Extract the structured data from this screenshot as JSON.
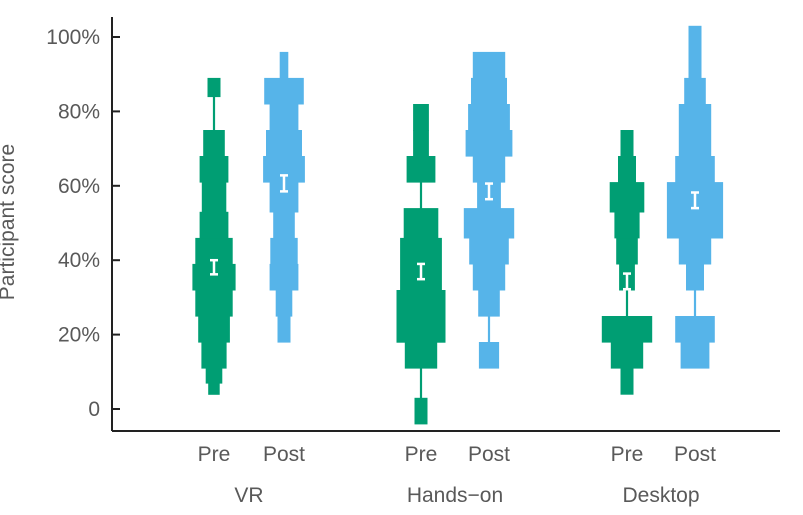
{
  "chart_data": {
    "type": "violin",
    "ylabel": "Participant score",
    "ylim": [
      -0.06,
      1.07
    ],
    "yticks": [
      {
        "value": 0.0,
        "label": "0"
      },
      {
        "value": 0.2,
        "label": "20%"
      },
      {
        "value": 0.4,
        "label": "40%"
      },
      {
        "value": 0.6,
        "label": "60%"
      },
      {
        "value": 0.8,
        "label": "80%"
      },
      {
        "value": 1.0,
        "label": "100%"
      }
    ],
    "groups": [
      {
        "name": "VR",
        "series": [
          {
            "name": "Pre",
            "color": "#009E73",
            "mean": 0.381,
            "ci": [
              0.362,
              0.4
            ],
            "steps": [
              [
                0.04,
                0.07,
                0.16
              ],
              [
                0.07,
                0.11,
                0.23
              ],
              [
                0.11,
                0.18,
                0.35
              ],
              [
                0.18,
                0.25,
                0.44
              ],
              [
                0.25,
                0.32,
                0.52
              ],
              [
                0.32,
                0.39,
                0.6
              ],
              [
                0.39,
                0.46,
                0.52
              ],
              [
                0.46,
                0.53,
                0.4
              ],
              [
                0.53,
                0.61,
                0.34
              ],
              [
                0.61,
                0.68,
                0.4
              ],
              [
                0.68,
                0.75,
                0.3
              ],
              [
                0.75,
                0.84,
                0.03
              ],
              [
                0.84,
                0.89,
                0.18
              ]
            ]
          },
          {
            "name": "Post",
            "color": "#56B4E9",
            "mean": 0.607,
            "ci": [
              0.585,
              0.628
            ],
            "steps": [
              [
                0.18,
                0.25,
                0.18
              ],
              [
                0.25,
                0.32,
                0.23
              ],
              [
                0.32,
                0.39,
                0.4
              ],
              [
                0.39,
                0.46,
                0.38
              ],
              [
                0.46,
                0.53,
                0.3
              ],
              [
                0.53,
                0.61,
                0.4
              ],
              [
                0.61,
                0.68,
                0.58
              ],
              [
                0.68,
                0.75,
                0.5
              ],
              [
                0.75,
                0.82,
                0.4
              ],
              [
                0.82,
                0.89,
                0.55
              ],
              [
                0.89,
                0.96,
                0.12
              ]
            ]
          }
        ]
      },
      {
        "name": "Hands−on",
        "series": [
          {
            "name": "Pre",
            "color": "#009E73",
            "mean": 0.369,
            "ci": [
              0.349,
              0.39
            ],
            "steps": [
              [
                -0.04,
                0.03,
                0.18
              ],
              [
                0.03,
                0.11,
                0.03
              ],
              [
                0.11,
                0.18,
                0.45
              ],
              [
                0.18,
                0.32,
                0.68
              ],
              [
                0.32,
                0.46,
                0.58
              ],
              [
                0.46,
                0.54,
                0.48
              ],
              [
                0.54,
                0.61,
                0.03
              ],
              [
                0.61,
                0.68,
                0.4
              ],
              [
                0.68,
                0.75,
                0.22
              ],
              [
                0.75,
                0.82,
                0.22
              ]
            ]
          },
          {
            "name": "Post",
            "color": "#56B4E9",
            "mean": 0.584,
            "ci": [
              0.564,
              0.606
            ],
            "steps": [
              [
                0.11,
                0.18,
                0.28
              ],
              [
                0.18,
                0.25,
                0.03
              ],
              [
                0.25,
                0.32,
                0.3
              ],
              [
                0.32,
                0.39,
                0.45
              ],
              [
                0.39,
                0.46,
                0.55
              ],
              [
                0.46,
                0.54,
                0.7
              ],
              [
                0.54,
                0.61,
                0.33
              ],
              [
                0.61,
                0.68,
                0.45
              ],
              [
                0.68,
                0.75,
                0.65
              ],
              [
                0.75,
                0.82,
                0.58
              ],
              [
                0.82,
                0.89,
                0.5
              ],
              [
                0.89,
                0.96,
                0.45
              ]
            ]
          }
        ]
      },
      {
        "name": "Desktop",
        "series": [
          {
            "name": "Pre",
            "color": "#009E73",
            "mean": 0.343,
            "ci": [
              0.322,
              0.364
            ],
            "steps": [
              [
                0.04,
                0.11,
                0.18
              ],
              [
                0.11,
                0.18,
                0.45
              ],
              [
                0.18,
                0.25,
                0.7
              ],
              [
                0.25,
                0.32,
                0.03
              ],
              [
                0.32,
                0.39,
                0.22
              ],
              [
                0.39,
                0.46,
                0.3
              ],
              [
                0.46,
                0.53,
                0.35
              ],
              [
                0.53,
                0.61,
                0.48
              ],
              [
                0.61,
                0.68,
                0.25
              ],
              [
                0.68,
                0.75,
                0.18
              ]
            ]
          },
          {
            "name": "Post",
            "color": "#56B4E9",
            "mean": 0.561,
            "ci": [
              0.54,
              0.582
            ],
            "steps": [
              [
                0.11,
                0.18,
                0.4
              ],
              [
                0.18,
                0.25,
                0.55
              ],
              [
                0.25,
                0.32,
                0.03
              ],
              [
                0.32,
                0.39,
                0.25
              ],
              [
                0.39,
                0.46,
                0.45
              ],
              [
                0.46,
                0.61,
                0.78
              ],
              [
                0.61,
                0.68,
                0.55
              ],
              [
                0.68,
                0.82,
                0.45
              ],
              [
                0.82,
                0.89,
                0.3
              ],
              [
                0.89,
                1.03,
                0.18
              ]
            ]
          }
        ]
      }
    ],
    "axis_color": "#222222",
    "label_color": "#595959",
    "ci_color": "#ffffff",
    "grid": false,
    "legend": "none"
  }
}
